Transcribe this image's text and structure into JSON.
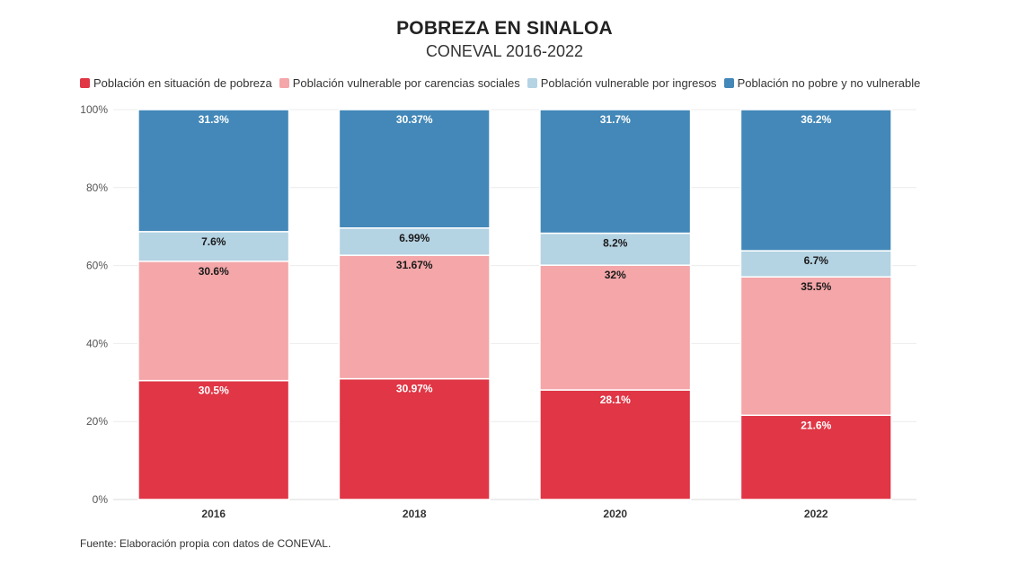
{
  "chart_data": {
    "type": "bar",
    "stacked": true,
    "title": "POBREZA EN SINALOA",
    "subtitle": "CONEVAL 2016-2022",
    "categories": [
      "2016",
      "2018",
      "2020",
      "2022"
    ],
    "series": [
      {
        "name": "Población en situación de pobreza",
        "color": "#e03645",
        "label_color": "#ffffff",
        "values": [
          30.5,
          30.97,
          28.1,
          21.6
        ],
        "labels": [
          "30.5%",
          "30.97%",
          "28.1%",
          "21.6%"
        ]
      },
      {
        "name": "Población vulnerable por carencias sociales",
        "color": "#f4a6a8",
        "label_color": "#1a1a1a",
        "values": [
          30.6,
          31.67,
          32,
          35.5
        ],
        "labels": [
          "30.6%",
          "31.67%",
          "32%",
          "35.5%"
        ]
      },
      {
        "name": "Población vulnerable por ingresos",
        "color": "#b4d3e3",
        "label_color": "#1a1a1a",
        "values": [
          7.6,
          6.99,
          8.2,
          6.7
        ],
        "labels": [
          "7.6%",
          "6.99%",
          "8.2%",
          "6.7%"
        ]
      },
      {
        "name": "Población no pobre y no vulnerable",
        "color": "#4388b8",
        "label_color": "#ffffff",
        "values": [
          31.3,
          30.37,
          31.7,
          36.2
        ],
        "labels": [
          "31.3%",
          "30.37%",
          "31.7%",
          "36.2%"
        ]
      }
    ],
    "y_ticks": [
      "0%",
      "20%",
      "40%",
      "60%",
      "80%",
      "100%"
    ],
    "ylim": [
      0,
      100
    ],
    "grid": true,
    "legend_position": "top-left"
  },
  "footer": {
    "source": "Fuente: Elaboración propia con datos de CONEVAL."
  }
}
